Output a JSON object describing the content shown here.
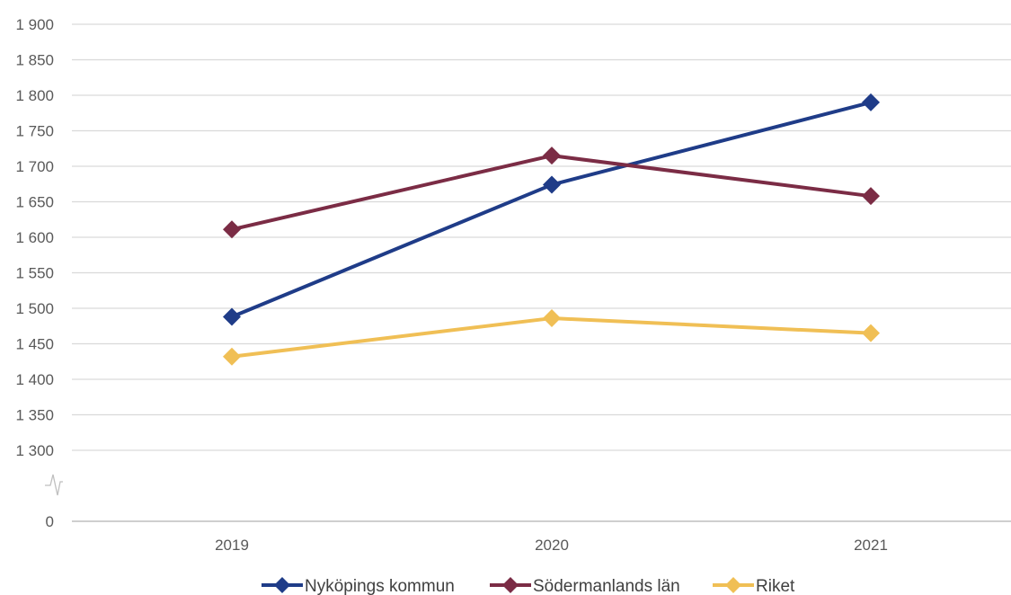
{
  "chart_data": {
    "type": "line",
    "categories": [
      "2019",
      "2020",
      "2021"
    ],
    "y_ticks": [
      "0",
      "1 300",
      "1 350",
      "1 400",
      "1 450",
      "1 500",
      "1 550",
      "1 600",
      "1 650",
      "1 700",
      "1 750",
      "1 800",
      "1 850",
      "1 900"
    ],
    "ylim": [
      1300,
      1900
    ],
    "axis_break": true,
    "grid": true,
    "legend_position": "bottom",
    "series": [
      {
        "name": "Nyköpings kommun",
        "color": "#1f3c88",
        "values": [
          1488,
          1674,
          1790
        ]
      },
      {
        "name": "Södermanlands län",
        "color": "#7b2c45",
        "values": [
          1611,
          1715,
          1658
        ]
      },
      {
        "name": "Riket",
        "color": "#f0bf55",
        "values": [
          1432,
          1486,
          1465
        ]
      }
    ]
  }
}
